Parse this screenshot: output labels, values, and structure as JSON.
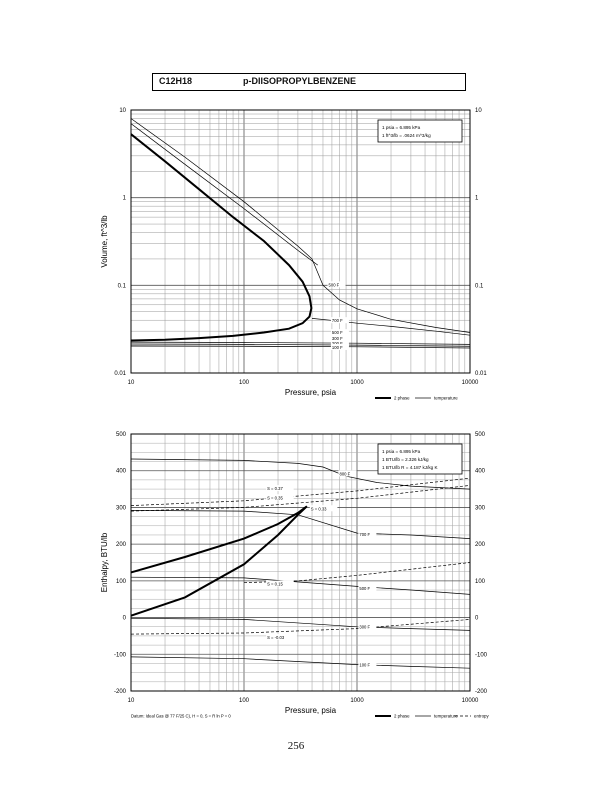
{
  "header": {
    "formula": "C12H18",
    "compound": "p-DIISOPROPYLBENZENE"
  },
  "page_number": "256",
  "top_chart": {
    "ylabel": "Volume, ft^3/lb",
    "xlabel": "Pressure, psia",
    "conversion_note": [
      "1 psia = 6.895 kPa",
      "1 ft^3/lb = .0624 m^3/kg"
    ],
    "legend": [
      "2 phase",
      "temperature"
    ]
  },
  "bottom_chart": {
    "ylabel": "Enthalpy, BTU/lb",
    "xlabel": "Pressure, psia",
    "conversion_note": [
      "1 psia = 6.895 kPa",
      "1 BTU/lb = 2.326 kJ/kg",
      "1 BTU/lb R = 4.187 kJ/kg K"
    ],
    "legend": [
      "2 phase",
      "temperature",
      "entropy"
    ],
    "datum": "Datum: Ideal Gas @ 77 F/25 C), H = 0, S = R ln P = 0"
  },
  "chart_data": [
    {
      "type": "line",
      "title": "",
      "xlabel": "Pressure, psia",
      "ylabel": "Volume, ft^3/lb",
      "x_scale": "log",
      "y_scale": "log",
      "xlim": [
        10,
        10000
      ],
      "ylim": [
        0.01,
        10
      ],
      "x_ticks": [
        "10",
        "100",
        "1000",
        "10000"
      ],
      "y_ticks": [
        "10",
        "1",
        "0.1",
        "0.01"
      ],
      "y_ticks_right": [
        "10",
        "1",
        "0.1",
        "0.01"
      ],
      "grid": true,
      "legend_position": "bottom-right",
      "series": [
        {
          "name": "2 phase",
          "style": "thick",
          "x": [
            10,
            20,
            40,
            80,
            150,
            250,
            330,
            380,
            395,
            380,
            330,
            250,
            150,
            80,
            40,
            20,
            10
          ],
          "y": [
            5.3,
            2.6,
            1.25,
            0.6,
            0.32,
            0.17,
            0.11,
            0.075,
            0.055,
            0.044,
            0.037,
            0.032,
            0.029,
            0.0265,
            0.025,
            0.024,
            0.0235
          ]
        },
        {
          "name": "temperature",
          "style": "thin",
          "x": [
            10,
            30,
            100,
            300,
            400,
            500,
            700,
            1000,
            2000,
            5000,
            10000
          ],
          "y": [
            8.0,
            2.9,
            0.9,
            0.28,
            0.2,
            0.1,
            0.068,
            0.054,
            0.041,
            0.033,
            0.029
          ]
        },
        {
          "name": "temperature",
          "style": "thin",
          "x": [
            10,
            30,
            100,
            300,
            450
          ],
          "y": [
            7.0,
            2.4,
            0.75,
            0.25,
            0.17
          ]
        },
        {
          "name": "temperature",
          "style": "thin",
          "x": [
            400,
            700,
            1000,
            2000,
            5000,
            10000
          ],
          "y": [
            0.042,
            0.039,
            0.037,
            0.034,
            0.03,
            0.027
          ]
        },
        {
          "name": "temperature",
          "style": "thin",
          "x": [
            10,
            100,
            1000,
            10000
          ],
          "y": [
            0.0225,
            0.0223,
            0.0219,
            0.0212
          ]
        },
        {
          "name": "temperature",
          "style": "thin",
          "x": [
            10,
            100,
            1000,
            10000
          ],
          "y": [
            0.0214,
            0.0212,
            0.0208,
            0.0202
          ]
        },
        {
          "name": "temperature",
          "style": "thin",
          "x": [
            10,
            100,
            1000,
            10000
          ],
          "y": [
            0.0204,
            0.0202,
            0.0199,
            0.0193
          ]
        }
      ],
      "annotations": [
        {
          "text": "500 F",
          "x": 560,
          "y": 0.1
        },
        {
          "text": "700 F",
          "x": 600,
          "y": 0.039
        },
        {
          "text": "500 F",
          "x": 600,
          "y": 0.0285
        },
        {
          "text": "300 F",
          "x": 600,
          "y": 0.0245
        },
        {
          "text": "200 F",
          "x": 600,
          "y": 0.0213
        },
        {
          "text": "100 F",
          "x": 600,
          "y": 0.0193
        }
      ]
    },
    {
      "type": "line",
      "title": "",
      "xlabel": "Pressure, psia",
      "ylabel": "Enthalpy, BTU/lb",
      "x_scale": "log",
      "y_scale": "linear",
      "xlim": [
        10,
        10000
      ],
      "ylim": [
        -200,
        500
      ],
      "x_ticks": [
        "10",
        "100",
        "1000",
        "10000"
      ],
      "y_ticks": [
        "500",
        "400",
        "300",
        "200",
        "100",
        "0",
        "-100",
        "-200"
      ],
      "y_ticks_right": [
        "500",
        "400",
        "300",
        "200",
        "100",
        "0",
        "-100",
        "-200"
      ],
      "grid": true,
      "legend_position": "bottom-right",
      "series": [
        {
          "name": "2 phase",
          "style": "thick",
          "x": [
            10,
            30,
            100,
            200,
            300,
            360,
            300,
            200,
            100,
            30,
            10
          ],
          "y": [
            123,
            165,
            215,
            255,
            285,
            303,
            280,
            225,
            145,
            55,
            5
          ]
        },
        {
          "name": "temperature",
          "style": "thin",
          "x": [
            10,
            100,
            300,
            500,
            800,
            1500,
            3000,
            10000
          ],
          "y": [
            432,
            428,
            420,
            410,
            385,
            368,
            358,
            350
          ]
        },
        {
          "name": "temperature",
          "style": "thin",
          "x": [
            10,
            100,
            300,
            1000,
            3000,
            10000
          ],
          "y": [
            292,
            290,
            280,
            230,
            225,
            215
          ]
        },
        {
          "name": "temperature",
          "style": "thin",
          "x": [
            10,
            100,
            1000,
            3000,
            10000
          ],
          "y": [
            110,
            108,
            85,
            75,
            63
          ]
        },
        {
          "name": "temperature",
          "style": "thin",
          "x": [
            10,
            100,
            1000,
            3000,
            10000
          ],
          "y": [
            -2,
            -5,
            -25,
            -30,
            -35
          ]
        },
        {
          "name": "temperature",
          "style": "thin",
          "x": [
            10,
            100,
            1000,
            3000,
            10000
          ],
          "y": [
            -107,
            -112,
            -128,
            -133,
            -138
          ]
        },
        {
          "name": "entropy",
          "style": "dashed",
          "x": [
            10,
            100,
            1000,
            10000
          ],
          "y": [
            305,
            318,
            345,
            380
          ]
        },
        {
          "name": "entropy",
          "style": "dashed",
          "x": [
            10,
            100,
            1000,
            10000
          ],
          "y": [
            290,
            300,
            325,
            360
          ]
        },
        {
          "name": "entropy",
          "style": "dashed",
          "x": [
            100,
            300,
            1000,
            10000
          ],
          "y": [
            95,
            100,
            115,
            150
          ]
        },
        {
          "name": "entropy",
          "style": "dashed",
          "x": [
            10,
            100,
            1000,
            10000
          ],
          "y": [
            -45,
            -42,
            -30,
            -5
          ]
        }
      ],
      "annotations": [
        {
          "text": "S = 0.37",
          "x": 160,
          "y": 350
        },
        {
          "text": "S = 0.35",
          "x": 160,
          "y": 325
        },
        {
          "text": "S = 0.33",
          "x": 390,
          "y": 295
        },
        {
          "text": "S = 0.15",
          "x": 160,
          "y": 90
        },
        {
          "text": "S = -0.03",
          "x": 160,
          "y": -55
        },
        {
          "text": "800 F",
          "x": 700,
          "y": 390
        },
        {
          "text": "700 F",
          "x": 1050,
          "y": 225
        },
        {
          "text": "500 F",
          "x": 1050,
          "y": 78
        },
        {
          "text": "300 F",
          "x": 1050,
          "y": -27
        },
        {
          "text": "100 F",
          "x": 1050,
          "y": -130
        }
      ]
    }
  ]
}
